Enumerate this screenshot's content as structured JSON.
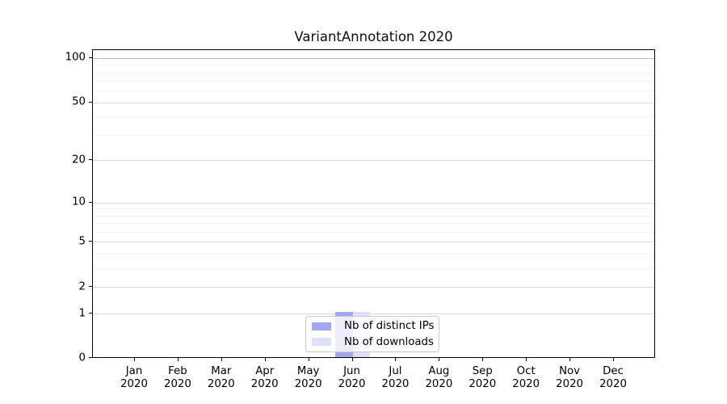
{
  "chart_data": {
    "type": "bar",
    "title": "VariantAnnotation 2020",
    "categories": [
      "Jan",
      "Feb",
      "Mar",
      "Apr",
      "May",
      "Jun",
      "Jul",
      "Aug",
      "Sep",
      "Oct",
      "Nov",
      "Dec"
    ],
    "category_year": "2020",
    "series": [
      {
        "name": "Nb of distinct IPs",
        "color": "#a3a7ef",
        "values": [
          0,
          0,
          0,
          0,
          0,
          1,
          0,
          0,
          0,
          0,
          0,
          0
        ]
      },
      {
        "name": "Nb of downloads",
        "color": "#dee0f8",
        "values": [
          0,
          0,
          0,
          0,
          0,
          1,
          0,
          0,
          0,
          0,
          0,
          0
        ]
      }
    ],
    "xlabel": "",
    "ylabel": "",
    "y_axis": {
      "scale": "log1p",
      "ticks": [
        0,
        1,
        2,
        5,
        10,
        20,
        50,
        100
      ],
      "minor_ticks": [
        3,
        4,
        6,
        7,
        8,
        9,
        30,
        40,
        60,
        70,
        80,
        90
      ],
      "ylim": [
        0,
        113
      ]
    },
    "grid": "on",
    "legend_position": "bottom-center"
  },
  "colors": {
    "grid_major": "#d9d9d9",
    "grid_minor": "#f2f2f2",
    "grid_top_line": "#b9b9b9",
    "spine": "#000000",
    "legend_border": "#cbcbcb"
  }
}
